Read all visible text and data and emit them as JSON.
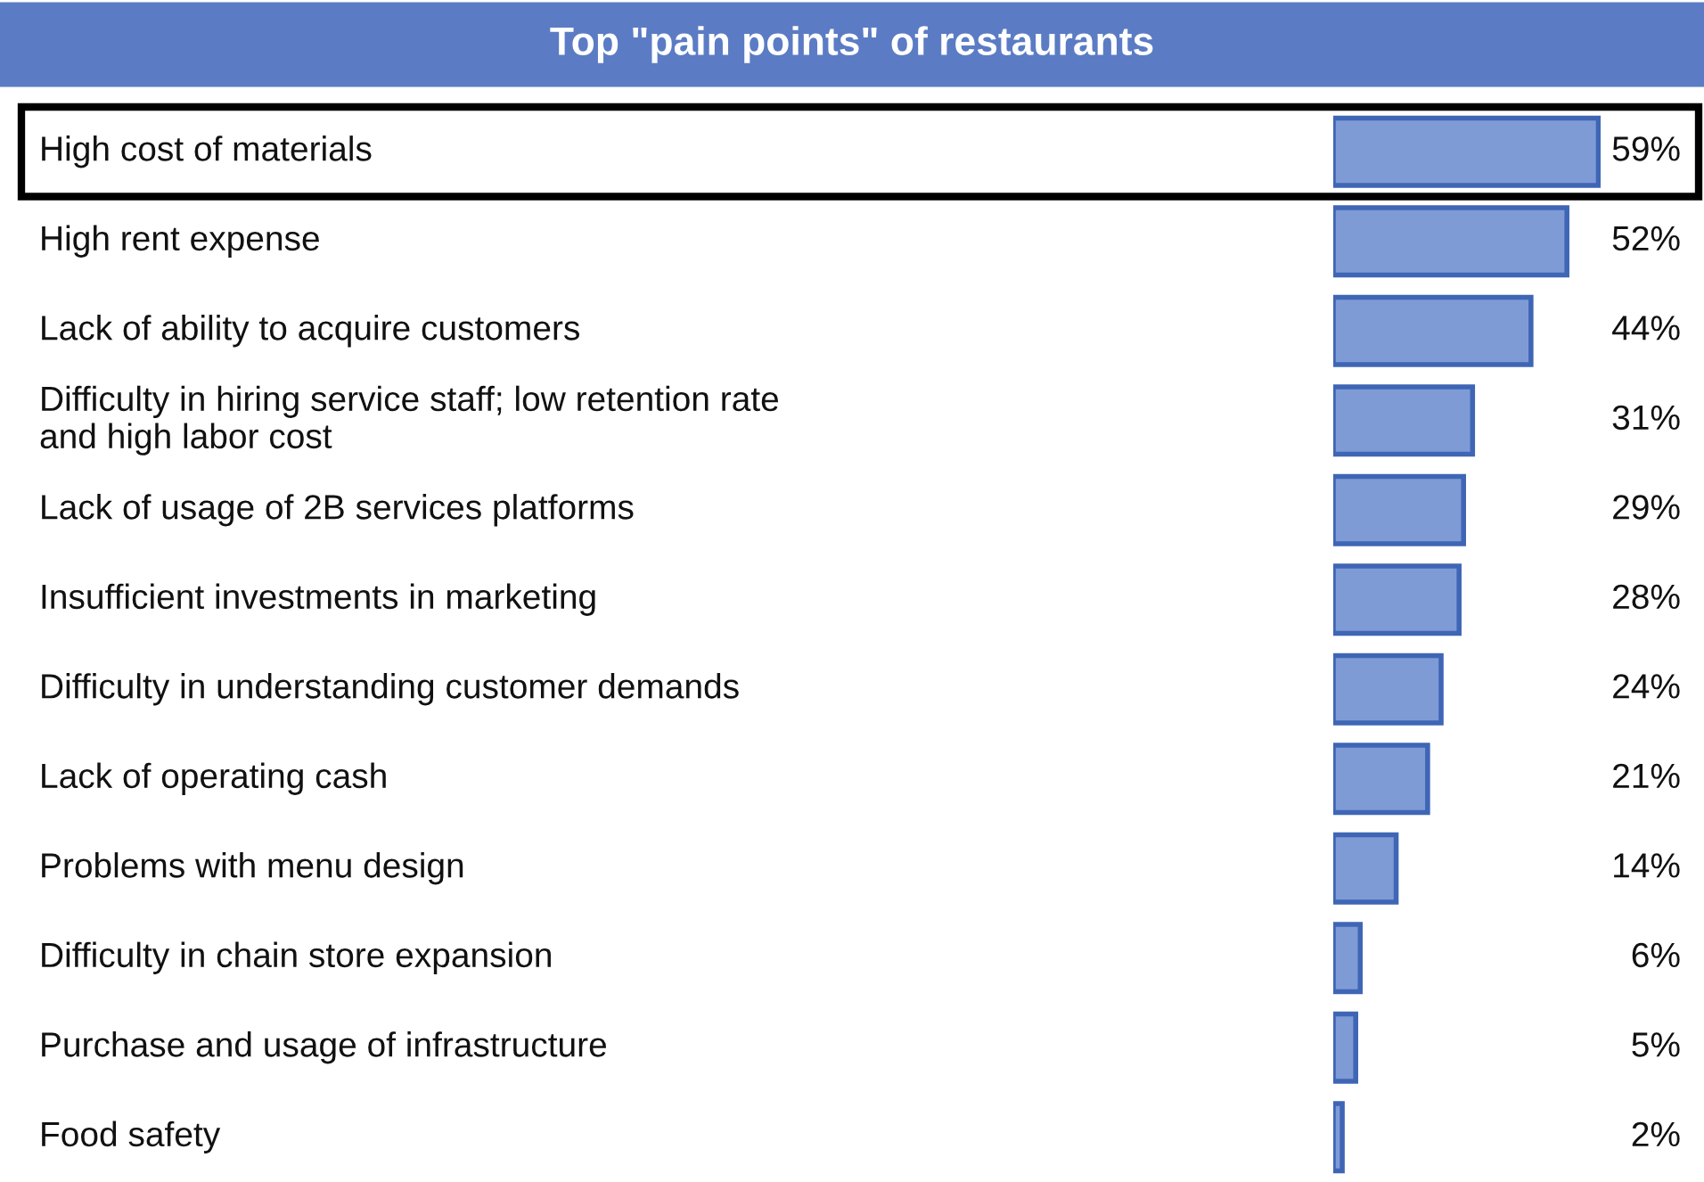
{
  "chart_data": {
    "type": "bar",
    "orientation": "horizontal",
    "title": "Top \"pain points\" of restaurants",
    "categories": [
      "High cost of materials",
      "High rent expense",
      "Lack of ability to acquire customers",
      "Difficulty in hiring service staff; low retention rate\nand high labor cost",
      "Lack of usage of 2B services platforms",
      "Insufficient investments in marketing",
      "Difficulty in understanding customer demands",
      "Lack of operating cash",
      "Problems with menu design",
      "Difficulty in chain store expansion",
      "Purchase and usage of infrastructure",
      "Food safety"
    ],
    "values": [
      59,
      52,
      44,
      31,
      29,
      28,
      24,
      21,
      14,
      6,
      5,
      2
    ],
    "value_labels": [
      "59%",
      "52%",
      "44%",
      "31%",
      "29%",
      "28%",
      "24%",
      "21%",
      "14%",
      "6%",
      "5%",
      "2%"
    ],
    "color": "#7f9bd6"
  }
}
